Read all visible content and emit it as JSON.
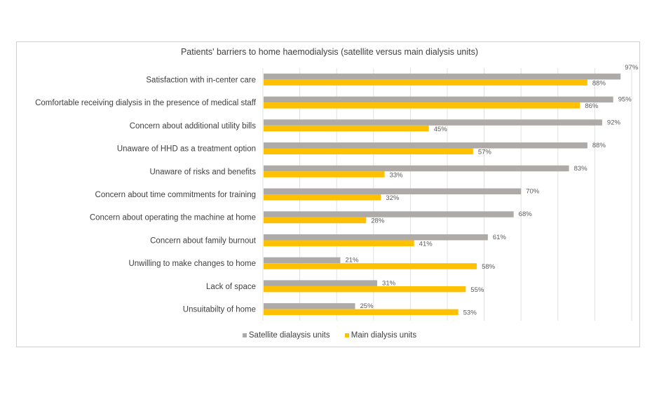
{
  "chart_data": {
    "type": "bar",
    "orientation": "horizontal",
    "title": "Patients' barriers to home haemodialysis (satellite versus main dialysis units)",
    "xlabel": "",
    "ylabel": "",
    "xlim": [
      0,
      100
    ],
    "grid": true,
    "legend_position": "bottom",
    "categories": [
      "Satisfaction with in-center care",
      "Comfortable receiving dialysis in the presence of medical staff",
      "Concern about additional utility bills",
      "Unaware of HHD as a treatment option",
      "Unaware of risks and benefits",
      "Concern about time commitments for training ",
      "Concern about operating the machine at home",
      "Concern about family burnout",
      "Unwilling to make changes to home",
      "Lack of space",
      "Unsuitabilty of home"
    ],
    "series": [
      {
        "name": "Satellite dialaysis units",
        "color": "#ADAAA8",
        "values": [
          97,
          95,
          92,
          88,
          83,
          70,
          68,
          61,
          21,
          31,
          25
        ],
        "labels": [
          "97%",
          "95%",
          "92%",
          "88%",
          "83%",
          "70%",
          "68%",
          "61%",
          "21%",
          "31%",
          "25%"
        ]
      },
      {
        "name": "Main dialysis units",
        "color": "#FFC000",
        "values": [
          88,
          86,
          45,
          57,
          33,
          32,
          28,
          41,
          58,
          55,
          53
        ],
        "labels": [
          "88%",
          "86%",
          "45%",
          "57%",
          "33%",
          "32%",
          "28%",
          "41%",
          "58%",
          "55%",
          "53%"
        ]
      }
    ]
  }
}
